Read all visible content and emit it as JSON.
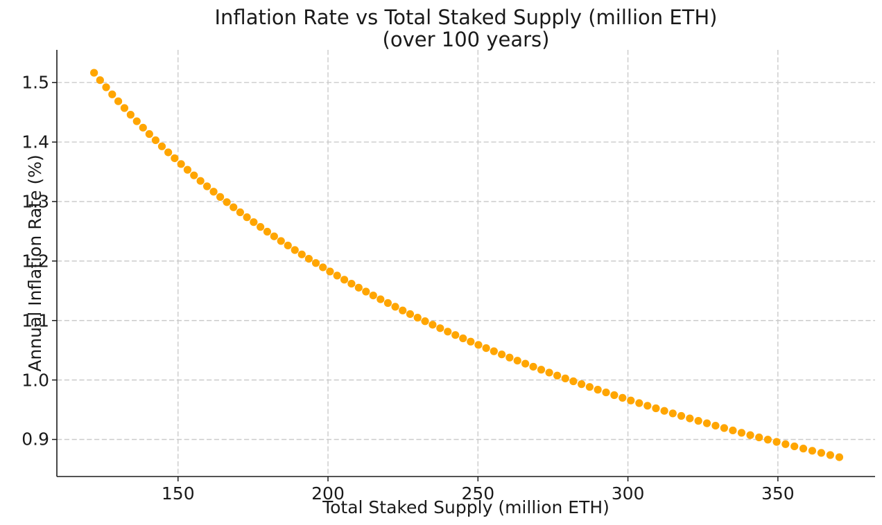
{
  "chart_data": {
    "type": "scatter",
    "title": "Inflation Rate vs Total Staked Supply (million ETH)",
    "subtitle": "(over 100 years)",
    "xlabel": "Total Staked Supply (million ETH)",
    "ylabel": "Annual Inflation Rate (%)",
    "xlim": [
      109.6,
      382.4
    ],
    "ylim": [
      0.8377,
      1.555
    ],
    "x_ticks": [
      150,
      200,
      250,
      300,
      350
    ],
    "y_ticks": [
      0.9,
      1.0,
      1.1,
      1.2,
      1.3,
      1.4,
      1.5
    ],
    "y_tick_labels": [
      "0.9",
      "1.0",
      "1.1",
      "1.2",
      "1.3",
      "1.4",
      "1.5"
    ],
    "x_tick_labels": [
      "150",
      "200",
      "250",
      "300",
      "350"
    ],
    "grid": true,
    "grid_style": "dashed",
    "legend": false,
    "marker_color": "#FFA500",
    "grid_color": "#cbcbcb",
    "axis_color": "#1a1a1a",
    "marker_radius": 5.6,
    "points": [
      [
        122.0,
        1.5165
      ],
      [
        124.01,
        1.5041
      ],
      [
        126.02,
        1.4921
      ],
      [
        128.05,
        1.4802
      ],
      [
        130.08,
        1.4686
      ],
      [
        132.13,
        1.4572
      ],
      [
        134.19,
        1.446
      ],
      [
        136.25,
        1.435
      ],
      [
        138.33,
        1.4242
      ],
      [
        140.42,
        1.4135
      ],
      [
        142.52,
        1.4031
      ],
      [
        144.62,
        1.3928
      ],
      [
        146.74,
        1.3827
      ],
      [
        148.87,
        1.3728
      ],
      [
        151.01,
        1.3631
      ],
      [
        153.16,
        1.3534
      ],
      [
        155.32,
        1.344
      ],
      [
        157.49,
        1.3347
      ],
      [
        159.67,
        1.3256
      ],
      [
        161.86,
        1.3166
      ],
      [
        164.06,
        1.3077
      ],
      [
        166.27,
        1.299
      ],
      [
        168.49,
        1.2904
      ],
      [
        170.72,
        1.2819
      ],
      [
        172.97,
        1.2736
      ],
      [
        175.22,
        1.2654
      ],
      [
        177.48,
        1.2573
      ],
      [
        179.75,
        1.2493
      ],
      [
        182.04,
        1.2415
      ],
      [
        184.33,
        1.2337
      ],
      [
        186.64,
        1.2261
      ],
      [
        188.95,
        1.2185
      ],
      [
        191.27,
        1.2111
      ],
      [
        193.61,
        1.2038
      ],
      [
        195.95,
        1.1966
      ],
      [
        198.31,
        1.1894
      ],
      [
        200.67,
        1.1824
      ],
      [
        203.05,
        1.1755
      ],
      [
        205.44,
        1.1686
      ],
      [
        207.83,
        1.1619
      ],
      [
        210.24,
        1.1552
      ],
      [
        212.66,
        1.1486
      ],
      [
        215.08,
        1.1421
      ],
      [
        217.52,
        1.1357
      ],
      [
        219.97,
        1.1294
      ],
      [
        222.43,
        1.1231
      ],
      [
        224.9,
        1.1169
      ],
      [
        227.38,
        1.1108
      ],
      [
        229.87,
        1.1048
      ],
      [
        232.37,
        1.0988
      ],
      [
        234.88,
        1.0929
      ],
      [
        237.4,
        1.0871
      ],
      [
        239.93,
        1.0813
      ],
      [
        242.47,
        1.0756
      ],
      [
        245.02,
        1.07
      ],
      [
        247.58,
        1.0645
      ],
      [
        250.15,
        1.059
      ],
      [
        252.73,
        1.0536
      ],
      [
        255.32,
        1.0483
      ],
      [
        257.93,
        1.043
      ],
      [
        260.54,
        1.0377
      ],
      [
        263.16,
        1.0325
      ],
      [
        265.8,
        1.0274
      ],
      [
        268.44,
        1.0223
      ],
      [
        271.09,
        1.0173
      ],
      [
        273.76,
        1.0124
      ],
      [
        276.43,
        1.0074
      ],
      [
        279.12,
        1.0026
      ],
      [
        281.81,
        0.9978
      ],
      [
        284.52,
        0.993
      ],
      [
        287.24,
        0.9883
      ],
      [
        289.96,
        0.9837
      ],
      [
        292.7,
        0.9791
      ],
      [
        295.44,
        0.9745
      ],
      [
        298.2,
        0.97
      ],
      [
        300.97,
        0.9655
      ],
      [
        303.75,
        0.9611
      ],
      [
        306.53,
        0.9567
      ],
      [
        309.33,
        0.9524
      ],
      [
        312.14,
        0.9481
      ],
      [
        314.96,
        0.9438
      ],
      [
        317.79,
        0.9396
      ],
      [
        320.63,
        0.9354
      ],
      [
        323.48,
        0.9313
      ],
      [
        326.34,
        0.9272
      ],
      [
        329.21,
        0.9232
      ],
      [
        332.09,
        0.9192
      ],
      [
        334.98,
        0.9152
      ],
      [
        337.88,
        0.9112
      ],
      [
        340.79,
        0.9073
      ],
      [
        343.72,
        0.9035
      ],
      [
        346.65,
        0.8997
      ],
      [
        349.59,
        0.8959
      ],
      [
        352.54,
        0.8921
      ],
      [
        355.51,
        0.8884
      ],
      [
        358.48,
        0.8847
      ],
      [
        361.46,
        0.881
      ],
      [
        364.46,
        0.8774
      ],
      [
        367.46,
        0.8738
      ],
      [
        370.48,
        0.8702
      ]
    ]
  }
}
